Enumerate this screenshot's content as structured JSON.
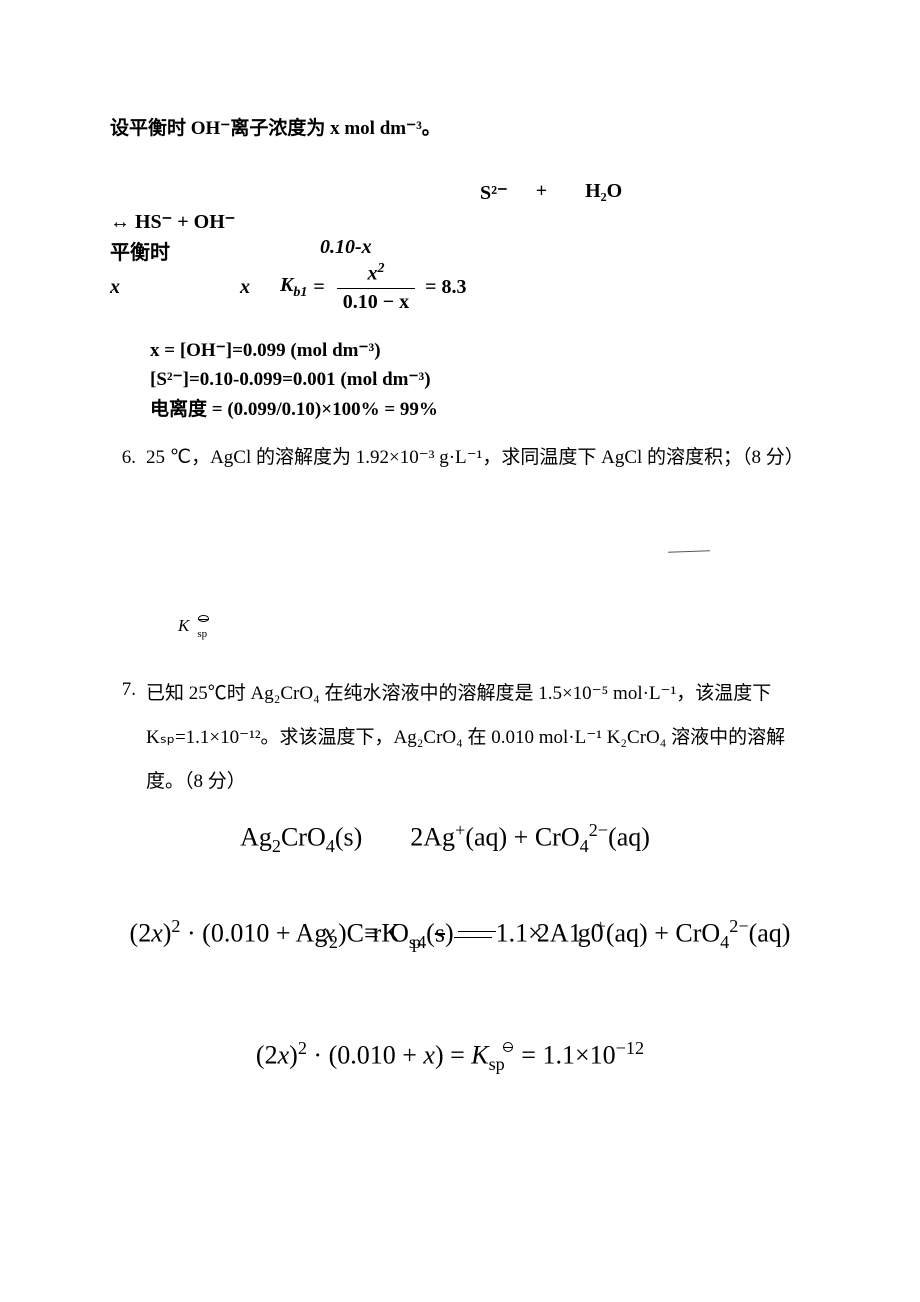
{
  "intro_line": "设平衡时 OH⁻离子浓度为 x mol dm⁻³。",
  "reaction": {
    "line1_species": "S²⁻",
    "line1_plus": "+",
    "line1_h2o": "H₂O",
    "line2": "↔    HS⁻    +    OH⁻",
    "row1_label": "平衡时",
    "row1_val": "0.10-x",
    "row2_a": "x",
    "row2_b": "x"
  },
  "kb": {
    "k_label_html": "K<span class=\"sub ital\">b1</span>",
    "eq_sign": "=",
    "num_html": "x<span class=\"sup\">2</span>",
    "den_html": "0.10 − x",
    "rhs": "= 8.3"
  },
  "results": {
    "l1": "x = [OH⁻]=0.099 (mol dm⁻³)",
    "l2": "[S²⁻]=0.10-0.099=0.001 (mol dm⁻³)",
    "l3": "电离度  = (0.099/0.10)×100% = 99%"
  },
  "p6": {
    "num": "6.",
    "text": "25 ℃，AgCl 的溶解度为 1.92×10⁻³ g·L⁻¹，求同温度下 AgCl 的溶度积；（8 分）"
  },
  "ksp_glyph": {
    "K": "K",
    "sp": "sp"
  },
  "p7": {
    "num": "7.",
    "text": "已知 25℃时 Ag₂CrO₄ 在纯水溶液中的溶解度是 1.5×10⁻⁵ mol·L⁻¹，该温度下 Kₛₚ=1.1×10⁻¹²。求该温度下，Ag₂CrO₄ 在  0.010 mol·L⁻¹ K₂CrO₄ 溶液中的溶解度。（8 分）"
  },
  "eq_a_html": "Ag<span class=\"sub\">2</span>CrO<span class=\"sub\">4</span>(s)<span class=\"biggap\"></span>2Ag<span class=\"sup\">+</span>(aq) + CrO<span class=\"sub\">4</span><span class=\"sup\">2−</span>(aq)",
  "eq_overlap_html": "(2<span class=\"ital\">x</span>)<span class=\"sup\">2</span> · (0.010 + A<span style=\"letter-spacing:-4px\">g</span><span class=\"ital\" style=\"letter-spacing:-6px\">x</span><span class=\"sub\">2</span>)C<span style=\"letter-spacing:-6px\">≡</span>r<span style=\"letter-spacing:-10px\">K</span>O<span class=\"sub\" style=\"letter-spacing:-4px\">sp</span><span class=\"sub\">4</span>(<span style=\"text-decoration:line-through\">s</span>)<span style=\"letter-spacing:-8px\"><span class=\"rxn-arrows\"></span></span>1.1<span style=\"letter-spacing:-6px\">×</span>2A<span style=\"letter-spacing:-4px\">1</span>g<span style=\"letter-spacing:-8px\">0</span><span class=\"sup\">+</span>(aq) + CrO<span class=\"sub\">4</span><span class=\"sup\">2−</span>(aq)",
  "eq_final_html": "(2<span class=\"ital\">x</span>)<span class=\"sup\">2</span> · (0.010 + <span class=\"ital\">x</span>) = <span class=\"ital\">K</span><span class=\"sub\">sp</span><span class=\"theta-sup\"></span> = 1.1×10<span class=\"sup\">−12</span>"
}
